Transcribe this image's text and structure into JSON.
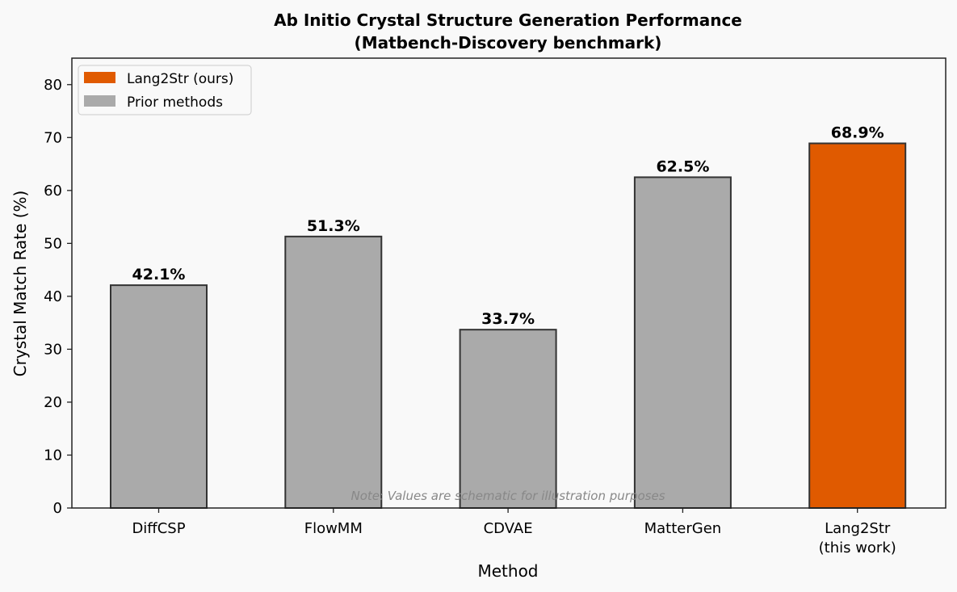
{
  "chart_data": {
    "type": "bar",
    "title_lines": [
      "Ab Initio Crystal Structure Generation Performance",
      "(Matbench-Discovery benchmark)"
    ],
    "xlabel": "Method",
    "ylabel": "Crystal Match Rate (%)",
    "ylim": [
      0,
      85
    ],
    "yticks": [
      0,
      10,
      20,
      30,
      40,
      50,
      60,
      70,
      80
    ],
    "categories": [
      {
        "lines": [
          "DiffCSP"
        ],
        "group": "prior"
      },
      {
        "lines": [
          "FlowMM"
        ],
        "group": "prior"
      },
      {
        "lines": [
          "CDVAE"
        ],
        "group": "prior"
      },
      {
        "lines": [
          "MatterGen"
        ],
        "group": "prior"
      },
      {
        "lines": [
          "Lang2Str",
          "(this work)"
        ],
        "group": "ours"
      }
    ],
    "values": [
      42.1,
      51.3,
      33.7,
      62.5,
      68.9
    ],
    "value_labels": [
      "42.1%",
      "51.3%",
      "33.7%",
      "62.5%",
      "68.9%"
    ],
    "legend": {
      "position": "top-left",
      "entries": [
        {
          "label": "Lang2Str (ours)",
          "group": "ours"
        },
        {
          "label": "Prior methods",
          "group": "prior"
        }
      ]
    },
    "colors": {
      "ours": "#e05a00",
      "prior": "#aaaaaa",
      "edge": "#333333"
    },
    "note": "Note: Values are schematic for illustration purposes"
  }
}
